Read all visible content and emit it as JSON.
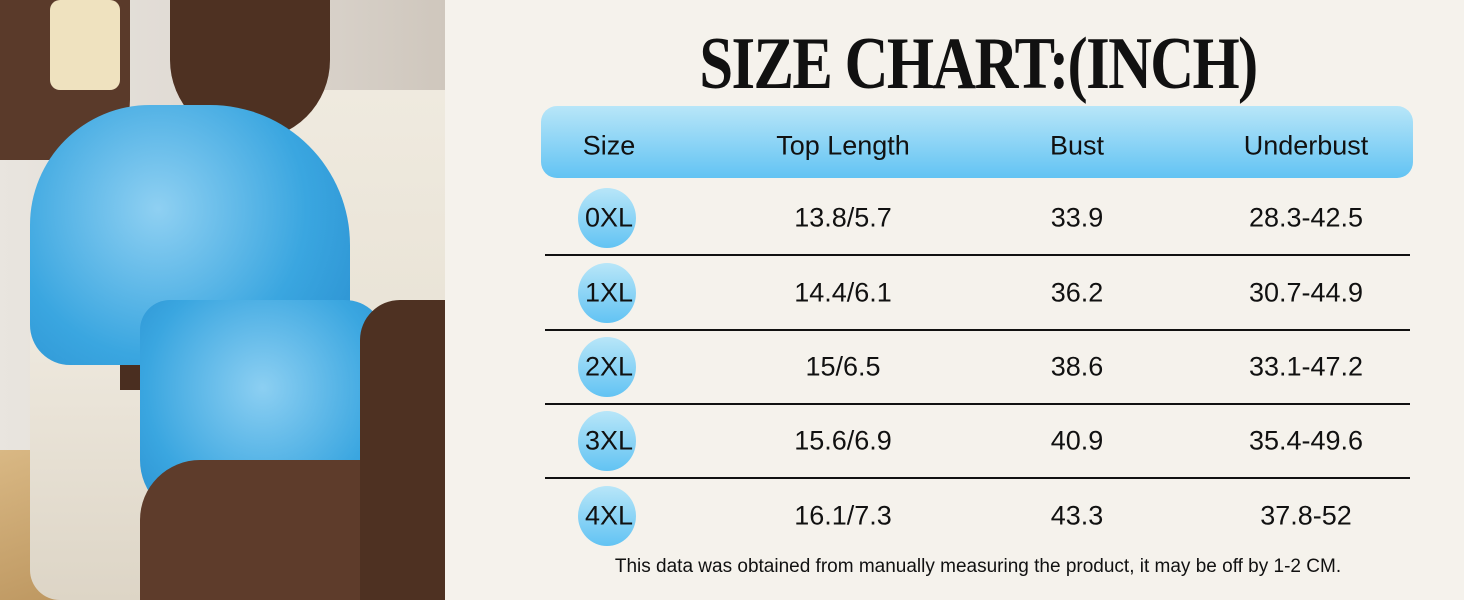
{
  "title": "SIZE CHART:(INCH)",
  "colors": {
    "accent_light": "#b8e6f8",
    "accent": "#62c3f3",
    "background": "#f5f2ec"
  },
  "table": {
    "headers": [
      "Size",
      "Top Length",
      "Bust",
      "Underbust"
    ],
    "rows": [
      [
        "0XL",
        "13.8/5.7",
        "33.9",
        "28.3-42.5"
      ],
      [
        "1XL",
        "14.4/6.1",
        "36.2",
        "30.7-44.9"
      ],
      [
        "2XL",
        "15/6.5",
        "38.6",
        "33.1-47.2"
      ],
      [
        "3XL",
        "15.6/6.9",
        "40.9",
        "35.4-49.6"
      ],
      [
        "4XL",
        "16.1/7.3",
        "43.3",
        "37.8-52"
      ]
    ]
  },
  "note": "This data was obtained from manually measuring the product, it may be off by 1-2 CM."
}
